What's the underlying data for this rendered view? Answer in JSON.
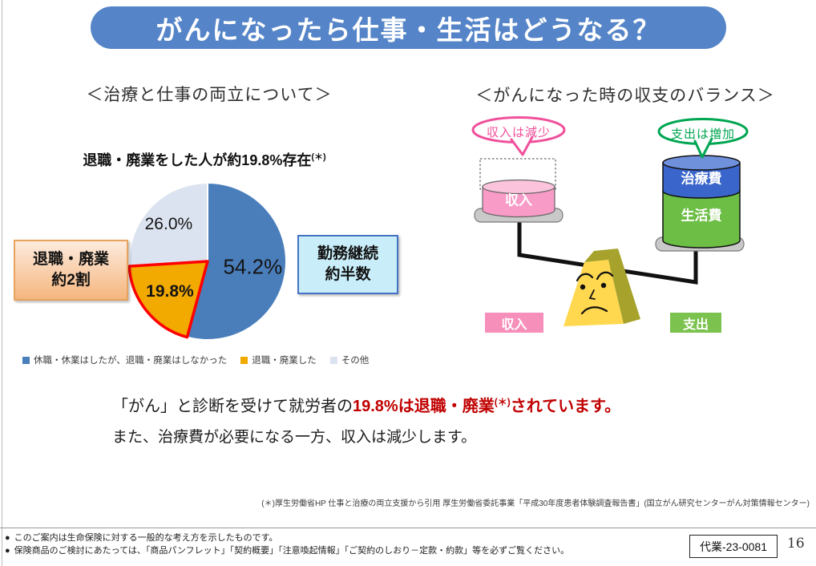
{
  "page": {
    "header_title": "がんになったら仕事・生活はどうなる？",
    "header_bg": "#5585C8"
  },
  "left_section": {
    "title": "＜治療と仕事の両立について＞",
    "chart_title": "退職・廃業をした人が約19.8%存在",
    "chart_title_sup": "(＊)",
    "callout_retire": {
      "line1": "退職・廃業",
      "line2": "約2割"
    },
    "callout_continue": {
      "line1": "勤務継続",
      "line2": "約半数"
    }
  },
  "chart_data": {
    "type": "pie",
    "title": "退職・廃業をした人が約19.8%存在 (＊)",
    "start_angle_deg": 0,
    "direction": "clockwise",
    "legend_position": "bottom",
    "slices": [
      {
        "label": "休職・休業はしたが、退職・廃業はしなかった",
        "value": 54.2,
        "display": "54.2%",
        "color": "#4A7EBB"
      },
      {
        "label": "退職・廃業した",
        "value": 19.8,
        "display": "19.8%",
        "color": "#F2A900",
        "outline": "#FF0000"
      },
      {
        "label": "その他",
        "value": 26.0,
        "display": "26.0%",
        "color": "#DCE3F0"
      }
    ]
  },
  "right_section": {
    "title": "＜がんになった時の収支のバランス＞",
    "income_bubble": "収入は減少",
    "expense_bubble": "支出は増加",
    "income_cylinder_label": "収入",
    "expense_treatment_label": "治療費",
    "expense_living_label": "生活費",
    "income_tag": "収入",
    "expense_tag": "支出",
    "colors": {
      "bubble_pink": "#F0509B",
      "bubble_green": "#00A651",
      "income_pink": "#F89BC7",
      "expense_blue": "#3A66CC",
      "expense_green": "#6CBE45",
      "tag_pink": "#F78FBB",
      "tag_green": "#7CC24E"
    }
  },
  "message": {
    "line1_black": "「がん」と診断を受けて就労者の",
    "line1_red": "19.8%は退職・廃業",
    "line1_sup": "(＊)",
    "line1_red_tail": "されています。",
    "line2": "また、治療費が必要になる一方、収入は減少します。",
    "red_color": "#C00000"
  },
  "footnote": "(＊)厚生労働省HP 仕事と治療の両立支援から引用 厚生労働省委託事業「平成30年度患者体験調査報告書」(国立がん研究センターがん対策情報センター)",
  "footer": {
    "bullet_char": "●",
    "bullet1": "このご案内は生命保険に対する一般的な考え方を示したものです。",
    "bullet2": "保険商品のご検討にあたっては、「商品パンフレット」「契約概要」「注意喚起情報」「ご契約のしおり－定款・約款」等を必ずご覧ください。",
    "doc_code": "代業-23-0081",
    "page_number": "16"
  }
}
